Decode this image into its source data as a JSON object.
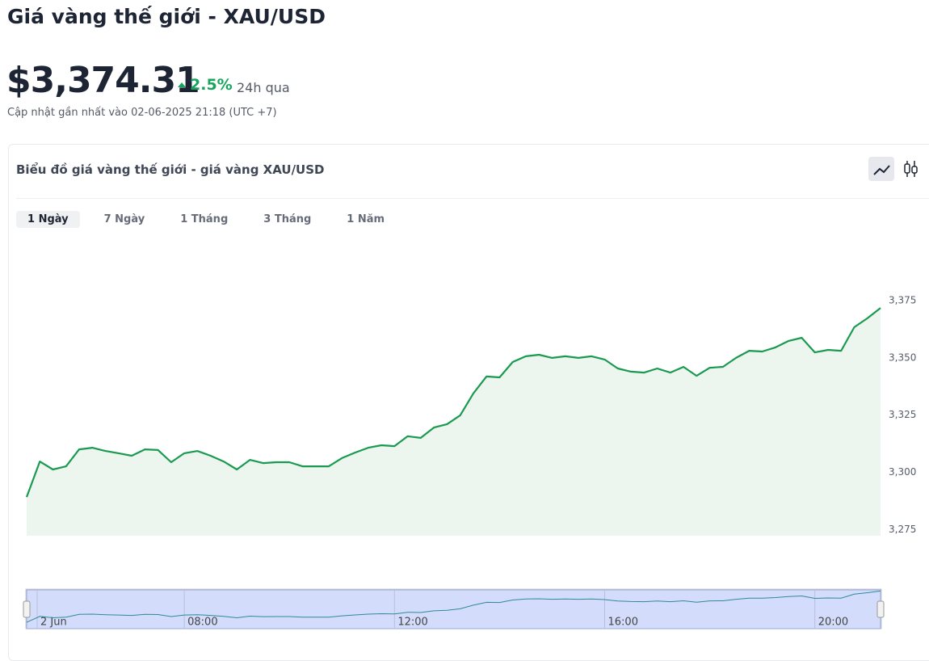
{
  "header": {
    "title": "Giá vàng thế giới - XAU/USD",
    "price": "$3,374.31",
    "change": "2.5%",
    "change_period": "24h qua",
    "updated": "Cập nhật gần nhất vào 02-06-2025 21:18 (UTC +7)"
  },
  "card": {
    "title": "Biểu đồ giá vàng thế giới - giá vàng XAU/USD",
    "tabs": [
      "1 Ngày",
      "7 Ngày",
      "1 Tháng",
      "3 Tháng",
      "1 Năm"
    ]
  },
  "chart_data": {
    "type": "area",
    "color": "#1a9a50",
    "x": [
      5,
      5.25,
      5.5,
      5.75,
      6,
      6.25,
      6.5,
      6.75,
      7,
      7.25,
      7.5,
      7.75,
      8,
      8.25,
      8.5,
      8.75,
      9,
      9.25,
      9.5,
      9.75,
      10,
      10.25,
      10.5,
      10.75,
      11,
      11.25,
      11.5,
      11.75,
      12,
      12.25,
      12.5,
      12.75,
      13,
      13.25,
      13.5,
      13.75,
      14,
      14.25,
      14.5,
      14.75,
      15,
      15.25,
      15.5,
      15.75,
      16,
      16.25,
      16.5,
      16.75,
      17,
      17.25,
      17.5,
      17.75,
      18,
      18.25,
      18.5,
      18.75,
      19,
      19.25,
      19.5,
      19.75,
      20,
      20.25,
      20.5,
      20.75,
      21,
      21.25
    ],
    "values": [
      3288.9,
      3304.4,
      3300.9,
      3302.3,
      3309.7,
      3310.4,
      3309,
      3308,
      3306.9,
      3309.7,
      3309.4,
      3304.1,
      3308,
      3309,
      3306.9,
      3304.4,
      3300.9,
      3305.1,
      3303.7,
      3304.1,
      3304.1,
      3302.3,
      3302.3,
      3302.3,
      3305.9,
      3308.3,
      3310.4,
      3311.5,
      3311.1,
      3315.4,
      3314.7,
      3319.2,
      3320.7,
      3324.5,
      3334.1,
      3341.5,
      3341.1,
      3347.8,
      3350.3,
      3351,
      3349.6,
      3350.3,
      3349.6,
      3350.3,
      3348.9,
      3345,
      3343.6,
      3343.2,
      3345,
      3343.2,
      3345.7,
      3341.8,
      3345.3,
      3345.7,
      3349.6,
      3352.7,
      3352.4,
      3354.2,
      3357,
      3358.4,
      3352,
      3353.1,
      3352.7,
      3363,
      3366.9,
      3371.4
    ],
    "xlim": [
      5,
      21.25
    ],
    "ylim": [
      3272,
      3400
    ],
    "yticks": [
      {
        "value": 3275,
        "label": "3,275"
      },
      {
        "value": 3300,
        "label": "3,300"
      },
      {
        "value": 3325,
        "label": "3,325"
      },
      {
        "value": 3350,
        "label": "3,350"
      },
      {
        "value": 3375,
        "label": "3,375"
      }
    ],
    "xticks": [
      {
        "value": 5.2,
        "label": "2 Jun"
      },
      {
        "value": 8,
        "label": "08:00"
      },
      {
        "value": 12,
        "label": "12:00"
      },
      {
        "value": 16,
        "label": "16:00"
      },
      {
        "value": 20,
        "label": "20:00"
      }
    ]
  }
}
